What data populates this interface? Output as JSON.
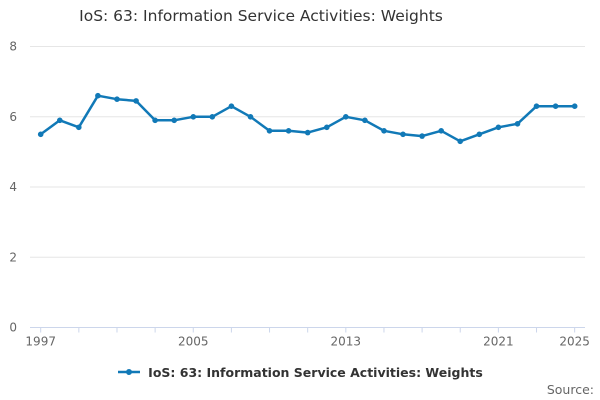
{
  "title": "IoS: 63: Information Service Activities: Weights",
  "legend": {
    "label": "IoS: 63: Information Service Activities: Weights"
  },
  "source_label": "Source:",
  "colors": {
    "series": "#1179b7",
    "grid": "#e6e6e6",
    "axis": "#ccd6eb",
    "tick_text": "#666666",
    "title_text": "#333333"
  },
  "chart_data": {
    "type": "line",
    "title": "IoS: 63: Information Service Activities: Weights",
    "x": [
      1997,
      1998,
      1999,
      2000,
      2001,
      2002,
      2003,
      2004,
      2005,
      2006,
      2007,
      2008,
      2009,
      2010,
      2011,
      2012,
      2013,
      2014,
      2015,
      2016,
      2017,
      2018,
      2019,
      2020,
      2021,
      2022,
      2023,
      2024,
      2025
    ],
    "series": [
      {
        "name": "IoS: 63: Information Service Activities: Weights",
        "values": [
          5.5,
          5.9,
          5.7,
          6.6,
          6.5,
          6.45,
          5.9,
          5.9,
          6.0,
          6.0,
          6.3,
          6.0,
          5.6,
          5.6,
          5.55,
          5.7,
          6.0,
          5.9,
          5.6,
          5.5,
          5.45,
          5.6,
          5.3,
          5.5,
          5.7,
          5.8,
          6.3,
          6.3,
          6.3
        ]
      }
    ],
    "xlabel": "",
    "ylabel": "",
    "xlim": [
      1997,
      2025
    ],
    "ylim": [
      0,
      8
    ],
    "yticks": [
      0,
      2,
      4,
      6,
      8
    ],
    "xtick_labels": [
      "1997",
      "2005",
      "2013",
      "2021",
      "2025"
    ],
    "xticks_minor_step": 2,
    "grid": true,
    "legend_position": "bottom"
  }
}
